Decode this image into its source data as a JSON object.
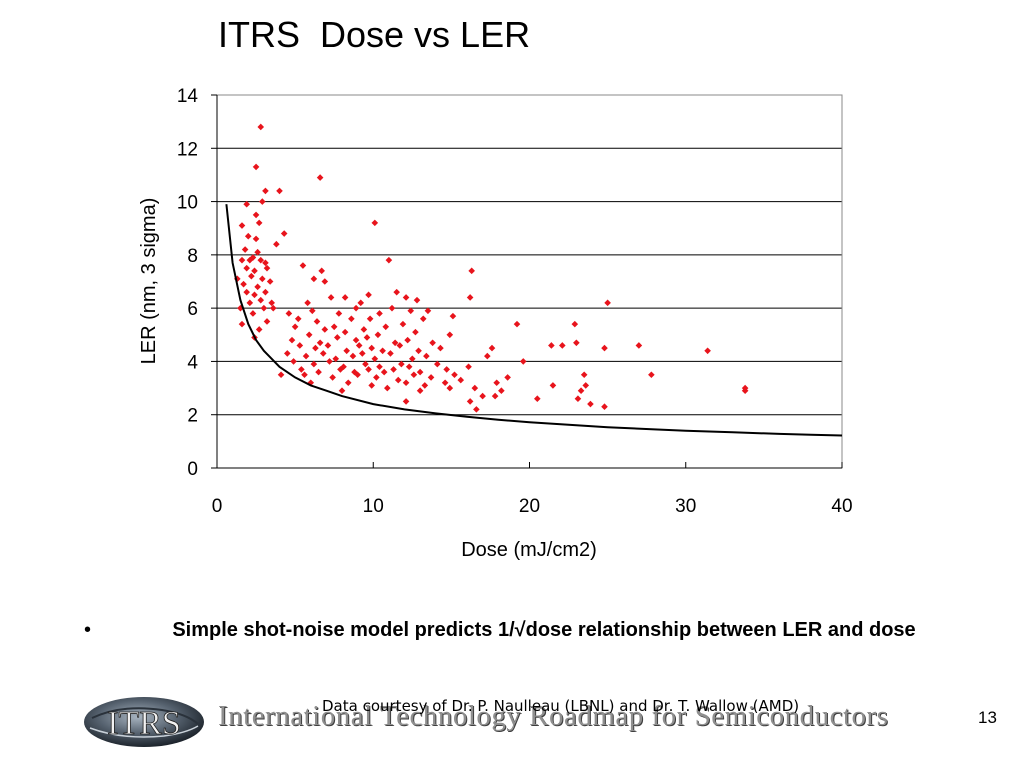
{
  "slide": {
    "title": "ITRS  Dose vs LER",
    "bullet_marker": "•",
    "bullet_text": "Simple shot-noise model predicts 1/√dose relationship between LER and dose",
    "credit": "Data courtesy of Dr. P. Naulleau (LBNL) and Dr. T. Wallow (AMD)",
    "page_number": "13"
  },
  "footer": {
    "logo_text": "ITRS",
    "org_name": "International Technology Roadmap for Semiconductors"
  },
  "colors": {
    "points": "#e8141c",
    "model_line": "#000000",
    "grid": "#000000"
  },
  "chart_data": {
    "type": "scatter",
    "title": "",
    "xlabel": "Dose (mJ/cm2)",
    "ylabel": "LER (nm, 3 sigma)",
    "xlim": [
      0,
      40
    ],
    "ylim": [
      0,
      14
    ],
    "x_ticks": [
      "0",
      "10",
      "20",
      "30",
      "40"
    ],
    "y_ticks": [
      "0",
      "2",
      "4",
      "6",
      "8",
      "10",
      "12",
      "14"
    ],
    "grid": "horizontal",
    "legend": "none",
    "model_curve": {
      "x": [
        0.6,
        1,
        1.5,
        2,
        2.5,
        3,
        3.5,
        4,
        5,
        6,
        7,
        8,
        10,
        12,
        14,
        16,
        18,
        20,
        22,
        25,
        28,
        30,
        33,
        36,
        38,
        40
      ],
      "y": [
        9.9,
        7.7,
        6.3,
        5.4,
        4.8,
        4.4,
        4.1,
        3.8,
        3.4,
        3.1,
        2.9,
        2.7,
        2.4,
        2.2,
        2.05,
        1.92,
        1.81,
        1.72,
        1.64,
        1.53,
        1.45,
        1.4,
        1.34,
        1.28,
        1.25,
        1.22
      ]
    },
    "points": [
      [
        2.8,
        12.8
      ],
      [
        2.5,
        11.3
      ],
      [
        6.6,
        10.9
      ],
      [
        3.1,
        10.4
      ],
      [
        4.0,
        10.4
      ],
      [
        1.9,
        9.9
      ],
      [
        2.9,
        10.0
      ],
      [
        2.5,
        9.5
      ],
      [
        2.7,
        9.2
      ],
      [
        10.1,
        9.2
      ],
      [
        1.6,
        9.1
      ],
      [
        4.3,
        8.8
      ],
      [
        2.0,
        8.7
      ],
      [
        2.5,
        8.6
      ],
      [
        3.8,
        8.4
      ],
      [
        1.8,
        8.2
      ],
      [
        2.6,
        8.1
      ],
      [
        2.3,
        7.9
      ],
      [
        1.6,
        7.8
      ],
      [
        2.1,
        7.8
      ],
      [
        2.8,
        7.8
      ],
      [
        3.1,
        7.7
      ],
      [
        11.0,
        7.8
      ],
      [
        1.9,
        7.5
      ],
      [
        2.4,
        7.4
      ],
      [
        3.2,
        7.5
      ],
      [
        5.5,
        7.6
      ],
      [
        6.7,
        7.4
      ],
      [
        16.3,
        7.4
      ],
      [
        1.3,
        7.1
      ],
      [
        2.2,
        7.2
      ],
      [
        2.9,
        7.1
      ],
      [
        3.4,
        7.0
      ],
      [
        6.2,
        7.1
      ],
      [
        6.9,
        7.0
      ],
      [
        1.7,
        6.9
      ],
      [
        2.6,
        6.8
      ],
      [
        1.9,
        6.6
      ],
      [
        3.1,
        6.6
      ],
      [
        11.5,
        6.6
      ],
      [
        2.4,
        6.5
      ],
      [
        2.8,
        6.3
      ],
      [
        3.5,
        6.2
      ],
      [
        7.3,
        6.4
      ],
      [
        8.2,
        6.4
      ],
      [
        9.7,
        6.5
      ],
      [
        12.1,
        6.4
      ],
      [
        16.2,
        6.4
      ],
      [
        2.1,
        6.2
      ],
      [
        3.0,
        6.0
      ],
      [
        5.8,
        6.2
      ],
      [
        9.2,
        6.2
      ],
      [
        12.8,
        6.3
      ],
      [
        25.0,
        6.2
      ],
      [
        1.5,
        6.0
      ],
      [
        3.6,
        6.0
      ],
      [
        6.1,
        5.9
      ],
      [
        8.9,
        6.0
      ],
      [
        11.2,
        6.0
      ],
      [
        13.5,
        5.9
      ],
      [
        2.3,
        5.8
      ],
      [
        4.6,
        5.8
      ],
      [
        7.8,
        5.8
      ],
      [
        10.4,
        5.8
      ],
      [
        12.4,
        5.9
      ],
      [
        15.1,
        5.7
      ],
      [
        1.6,
        5.4
      ],
      [
        3.2,
        5.5
      ],
      [
        5.2,
        5.6
      ],
      [
        6.4,
        5.5
      ],
      [
        8.6,
        5.6
      ],
      [
        9.8,
        5.6
      ],
      [
        11.9,
        5.4
      ],
      [
        13.2,
        5.6
      ],
      [
        19.2,
        5.4
      ],
      [
        22.9,
        5.4
      ],
      [
        2.7,
        5.2
      ],
      [
        5.0,
        5.3
      ],
      [
        6.9,
        5.2
      ],
      [
        7.5,
        5.3
      ],
      [
        8.2,
        5.1
      ],
      [
        9.4,
        5.2
      ],
      [
        10.8,
        5.3
      ],
      [
        12.7,
        5.1
      ],
      [
        14.9,
        5.0
      ],
      [
        2.4,
        4.9
      ],
      [
        4.8,
        4.8
      ],
      [
        5.9,
        5.0
      ],
      [
        6.6,
        4.7
      ],
      [
        7.7,
        4.9
      ],
      [
        8.9,
        4.8
      ],
      [
        9.6,
        4.9
      ],
      [
        10.3,
        5.0
      ],
      [
        11.4,
        4.7
      ],
      [
        12.2,
        4.8
      ],
      [
        13.8,
        4.7
      ],
      [
        23.0,
        4.7
      ],
      [
        5.3,
        4.6
      ],
      [
        6.3,
        4.5
      ],
      [
        7.1,
        4.6
      ],
      [
        8.3,
        4.4
      ],
      [
        9.1,
        4.6
      ],
      [
        9.9,
        4.5
      ],
      [
        10.6,
        4.4
      ],
      [
        11.7,
        4.6
      ],
      [
        12.9,
        4.4
      ],
      [
        14.3,
        4.5
      ],
      [
        17.6,
        4.5
      ],
      [
        21.4,
        4.6
      ],
      [
        22.1,
        4.6
      ],
      [
        24.8,
        4.5
      ],
      [
        27.0,
        4.6
      ],
      [
        31.4,
        4.4
      ],
      [
        4.5,
        4.3
      ],
      [
        5.7,
        4.2
      ],
      [
        6.8,
        4.3
      ],
      [
        7.6,
        4.1
      ],
      [
        8.7,
        4.2
      ],
      [
        9.3,
        4.3
      ],
      [
        10.1,
        4.1
      ],
      [
        11.1,
        4.3
      ],
      [
        12.5,
        4.1
      ],
      [
        13.4,
        4.2
      ],
      [
        17.3,
        4.2
      ],
      [
        4.9,
        4.0
      ],
      [
        6.2,
        3.9
      ],
      [
        7.2,
        4.0
      ],
      [
        8.1,
        3.8
      ],
      [
        9.5,
        3.9
      ],
      [
        10.4,
        3.8
      ],
      [
        11.8,
        3.9
      ],
      [
        12.3,
        3.8
      ],
      [
        14.1,
        3.9
      ],
      [
        19.6,
        4.0
      ],
      [
        5.4,
        3.7
      ],
      [
        6.5,
        3.6
      ],
      [
        7.9,
        3.7
      ],
      [
        8.8,
        3.6
      ],
      [
        9.7,
        3.7
      ],
      [
        10.7,
        3.6
      ],
      [
        11.3,
        3.7
      ],
      [
        13.0,
        3.6
      ],
      [
        14.7,
        3.7
      ],
      [
        16.1,
        3.8
      ],
      [
        4.1,
        3.5
      ],
      [
        5.6,
        3.5
      ],
      [
        7.4,
        3.4
      ],
      [
        9.0,
        3.5
      ],
      [
        10.2,
        3.4
      ],
      [
        11.6,
        3.3
      ],
      [
        12.6,
        3.5
      ],
      [
        13.7,
        3.4
      ],
      [
        15.2,
        3.5
      ],
      [
        18.6,
        3.4
      ],
      [
        23.5,
        3.5
      ],
      [
        27.8,
        3.5
      ],
      [
        6.0,
        3.2
      ],
      [
        8.4,
        3.2
      ],
      [
        9.9,
        3.1
      ],
      [
        12.1,
        3.2
      ],
      [
        13.3,
        3.1
      ],
      [
        14.6,
        3.2
      ],
      [
        15.6,
        3.3
      ],
      [
        17.9,
        3.2
      ],
      [
        21.5,
        3.1
      ],
      [
        23.6,
        3.1
      ],
      [
        8.0,
        2.9
      ],
      [
        10.9,
        3.0
      ],
      [
        13.0,
        2.9
      ],
      [
        14.9,
        3.0
      ],
      [
        16.5,
        3.0
      ],
      [
        18.2,
        2.9
      ],
      [
        23.3,
        2.9
      ],
      [
        33.8,
        2.9
      ],
      [
        33.8,
        3.0
      ],
      [
        17.0,
        2.7
      ],
      [
        17.8,
        2.7
      ],
      [
        20.5,
        2.6
      ],
      [
        23.1,
        2.6
      ],
      [
        12.1,
        2.5
      ],
      [
        16.2,
        2.5
      ],
      [
        23.9,
        2.4
      ],
      [
        24.8,
        2.3
      ],
      [
        16.6,
        2.2
      ]
    ]
  }
}
